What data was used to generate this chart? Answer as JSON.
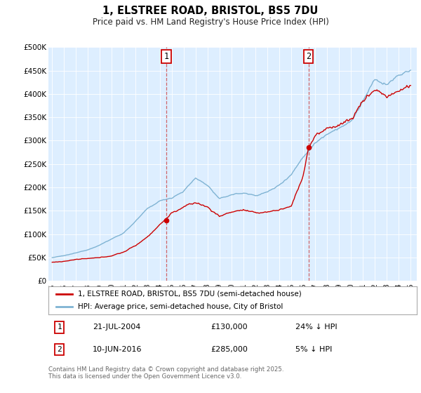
{
  "title": "1, ELSTREE ROAD, BRISTOL, BS5 7DU",
  "subtitle": "Price paid vs. HM Land Registry's House Price Index (HPI)",
  "ylim": [
    0,
    500000
  ],
  "yticks": [
    0,
    50000,
    100000,
    150000,
    200000,
    250000,
    300000,
    350000,
    400000,
    450000,
    500000
  ],
  "ytick_labels": [
    "£0",
    "£50K",
    "£100K",
    "£150K",
    "£200K",
    "£250K",
    "£300K",
    "£350K",
    "£400K",
    "£450K",
    "£500K"
  ],
  "xlim_min": 1994.7,
  "xlim_max": 2025.5,
  "sale1_date": 2004.55,
  "sale1_price": 130000,
  "sale1_label": "1",
  "sale1_text": "21-JUL-2004",
  "sale1_price_text": "£130,000",
  "sale1_hpi_text": "24% ↓ HPI",
  "sale2_date": 2016.44,
  "sale2_price": 285000,
  "sale2_label": "2",
  "sale2_text": "10-JUN-2016",
  "sale2_price_text": "£285,000",
  "sale2_hpi_text": "5% ↓ HPI",
  "legend_label1": "1, ELSTREE ROAD, BRISTOL, BS5 7DU (semi-detached house)",
  "legend_label2": "HPI: Average price, semi-detached house, City of Bristol",
  "footer": "Contains HM Land Registry data © Crown copyright and database right 2025.\nThis data is licensed under the Open Government Licence v3.0.",
  "red_line_color": "#cc0000",
  "blue_line_color": "#7fb3d3",
  "plot_bg": "#ddeeff",
  "fig_bg": "#ffffff"
}
